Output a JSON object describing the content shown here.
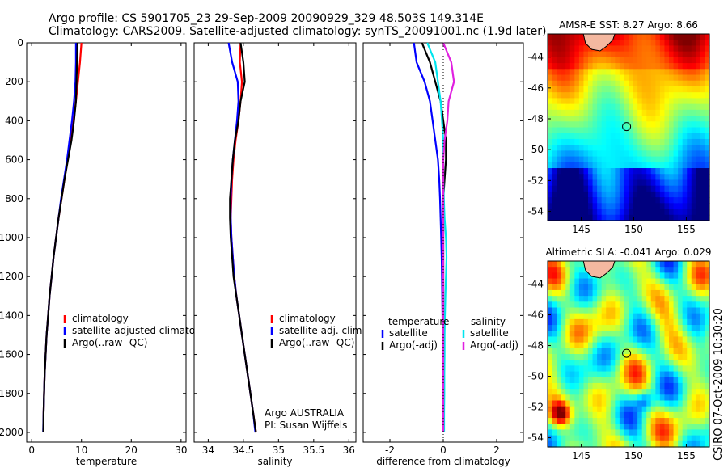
{
  "header": {
    "line1": "Argo profile: CS 5901705_23 29-Sep-2009 20090929_329 48.503S 149.314E",
    "line2": "Climatology: CARS2009. Satellite-adjusted climatology: synTS_20091001.nc (1.9d later)"
  },
  "footer_vertical": "CSIRO 07-Oct-2009 10:30:20",
  "colors": {
    "climatology": "#ff0000",
    "satellite": "#0000ff",
    "argo": "#000000",
    "sal_satellite": "#00e5ee",
    "sal_argo": "#e020e0"
  },
  "chart_data": [
    {
      "type": "line",
      "id": "temperature",
      "xlabel": "temperature",
      "ylabel": "",
      "xlim": [
        -1,
        31
      ],
      "ylim": [
        0,
        2050
      ],
      "y_reversed": true,
      "xticks": [
        0,
        10,
        20,
        30
      ],
      "yticks": [
        0,
        200,
        400,
        600,
        800,
        1000,
        1200,
        1400,
        1600,
        1800,
        2000
      ],
      "depth": [
        0,
        100,
        200,
        300,
        400,
        500,
        600,
        700,
        800,
        900,
        1000,
        1100,
        1200,
        1300,
        1400,
        1500,
        1600,
        1700,
        1800,
        1900,
        2000
      ],
      "series": [
        {
          "name": "climatology",
          "color": "#ff0000",
          "values": [
            10.0,
            9.7,
            9.3,
            8.9,
            8.4,
            7.8,
            7.2,
            6.6,
            6.0,
            5.4,
            4.9,
            4.4,
            4.0,
            3.6,
            3.3,
            3.0,
            2.8,
            2.6,
            2.5,
            2.4,
            2.35
          ]
        },
        {
          "name": "satellite-adjusted climatology",
          "color": "#0000ff",
          "values": [
            8.9,
            8.9,
            8.8,
            8.5,
            8.1,
            7.6,
            7.1,
            6.5,
            5.9,
            5.4,
            4.9,
            4.4,
            4.0,
            3.6,
            3.3,
            3.0,
            2.8,
            2.6,
            2.5,
            2.4,
            2.3
          ]
        },
        {
          "name": "Argo(..raw -QC)",
          "color": "#000000",
          "values": [
            9.2,
            9.1,
            9.0,
            8.9,
            8.5,
            8.0,
            7.3,
            6.6,
            6.0,
            5.4,
            4.9,
            4.4,
            4.0,
            3.6,
            3.3,
            3.0,
            2.8,
            2.6,
            2.5,
            2.4,
            2.35
          ]
        }
      ],
      "legend": [
        "climatology",
        "satellite-adjusted climatolog",
        "Argo(..raw -QC)"
      ],
      "legend_position": "center-right"
    },
    {
      "type": "line",
      "id": "salinity",
      "xlabel": "salinity",
      "xlim": [
        33.8,
        36.1
      ],
      "ylim": [
        0,
        2050
      ],
      "y_reversed": true,
      "xticks": [
        34,
        34.5,
        35,
        35.5,
        36
      ],
      "depth": [
        0,
        100,
        200,
        300,
        400,
        500,
        600,
        700,
        800,
        900,
        1000,
        1100,
        1200,
        1300,
        1400,
        1500,
        1600,
        1700,
        1800,
        1900,
        2000
      ],
      "series": [
        {
          "name": "climatology",
          "color": "#ff0000",
          "values": [
            34.46,
            34.45,
            34.48,
            34.46,
            34.43,
            34.39,
            34.36,
            34.34,
            34.33,
            34.32,
            34.33,
            34.35,
            34.37,
            34.4,
            34.44,
            34.48,
            34.52,
            34.56,
            34.6,
            34.64,
            34.68
          ]
        },
        {
          "name": "satellite adj. clim.",
          "color": "#0000ff",
          "values": [
            34.29,
            34.34,
            34.42,
            34.43,
            34.41,
            34.38,
            34.35,
            34.33,
            34.32,
            34.32,
            34.33,
            34.35,
            34.37,
            34.4,
            34.44,
            34.48,
            34.52,
            34.56,
            34.6,
            34.64,
            34.67
          ]
        },
        {
          "name": "Argo(..raw -QC)",
          "color": "#000000",
          "values": [
            34.46,
            34.5,
            34.52,
            34.46,
            34.43,
            34.38,
            34.35,
            34.33,
            34.31,
            34.31,
            34.32,
            34.34,
            34.36,
            34.4,
            34.44,
            34.48,
            34.52,
            34.56,
            34.6,
            34.64,
            34.68
          ]
        }
      ],
      "legend": [
        "climatology",
        "satellite adj. clim.",
        "Argo(..raw -QC)"
      ],
      "legend_position": "center-right",
      "annotation": [
        "Argo AUSTRALIA",
        "PI: Susan Wijffels"
      ]
    },
    {
      "type": "line",
      "id": "difference",
      "xlabel": "difference from climatology",
      "xlim": [
        -3,
        3
      ],
      "ylim": [
        0,
        2050
      ],
      "y_reversed": true,
      "xticks": [
        -2,
        0,
        2
      ],
      "depth": [
        0,
        100,
        200,
        300,
        400,
        500,
        600,
        700,
        800,
        900,
        1000,
        1100,
        1200,
        1300,
        1400,
        1500,
        1600,
        1700,
        1800,
        1900,
        2000
      ],
      "series": [
        {
          "name": "temperature satellite",
          "color": "#0000ff",
          "values": [
            -1.1,
            -1.0,
            -0.7,
            -0.5,
            -0.4,
            -0.3,
            -0.2,
            -0.15,
            -0.12,
            -0.1,
            -0.08,
            -0.06,
            -0.05,
            -0.04,
            -0.03,
            -0.02,
            -0.02,
            -0.01,
            -0.01,
            -0.01,
            -0.01
          ]
        },
        {
          "name": "temperature Argo(-adj)",
          "color": "#000000",
          "values": [
            -0.8,
            -0.5,
            -0.3,
            -0.1,
            0.0,
            0.1,
            0.1,
            0.05,
            0.0,
            0.0,
            0.0,
            0.0,
            0.0,
            0.0,
            0.0,
            0.0,
            0.0,
            0.0,
            0.0,
            0.0,
            0.0
          ]
        },
        {
          "name": "salinity satellite",
          "color": "#00e5ee",
          "values": [
            -0.6,
            -0.3,
            -0.2,
            -0.1,
            -0.05,
            0.0,
            0.0,
            0.0,
            0.02,
            0.05,
            0.1,
            0.12,
            0.1,
            0.08,
            0.06,
            0.05,
            0.05,
            0.04,
            0.04,
            0.03,
            0.03
          ]
        },
        {
          "name": "salinity Argo(-adj)",
          "color": "#e020e0",
          "values": [
            0.0,
            0.3,
            0.4,
            0.2,
            0.15,
            0.05,
            0.0,
            0.0,
            0.0,
            0.0,
            0.0,
            0.0,
            0.0,
            0.0,
            0.0,
            0.0,
            0.0,
            0.0,
            0.0,
            0.0,
            0.0
          ]
        }
      ],
      "legend_temperature": {
        "title": "temperature",
        "items": [
          "satellite",
          "Argo(-adj)"
        ]
      },
      "legend_salinity": {
        "title": "salinity",
        "items": [
          "satellite",
          "Argo(-adj)"
        ]
      }
    },
    {
      "type": "heatmap",
      "id": "sst_map",
      "title": "AMSR-E SST: 8.27 Argo: 8.66",
      "xlim": [
        141.8,
        157.2
      ],
      "ylim": [
        -54.6,
        -42.5
      ],
      "xticks": [
        145,
        150,
        155
      ],
      "yticks": [
        -44,
        -46,
        -48,
        -50,
        -52,
        -54
      ],
      "argo_position": [
        149.314,
        -48.503
      ],
      "palette": "jet"
    },
    {
      "type": "heatmap",
      "id": "sla_map",
      "title": "Altimetric SLA: -0.041 Argo: 0.029",
      "xlim": [
        141.8,
        157.2
      ],
      "ylim": [
        -54.6,
        -42.5
      ],
      "xticks": [
        145,
        150,
        155
      ],
      "yticks": [
        -44,
        -46,
        -48,
        -50,
        -52,
        -54
      ],
      "argo_position": [
        149.314,
        -48.503
      ],
      "palette": "jet"
    }
  ]
}
